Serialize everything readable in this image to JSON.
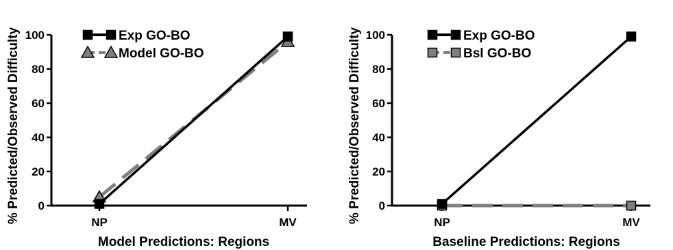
{
  "chart_data": [
    {
      "type": "line",
      "categories": [
        "NP",
        "MV"
      ],
      "xlabel": "Model Predictions: Regions",
      "ylabel": "% Predicted/Observed Difficulty",
      "ylim": [
        0,
        100
      ],
      "yticks": [
        0,
        20,
        40,
        60,
        80,
        100
      ],
      "grid": false,
      "legend_position": "top-left",
      "series": [
        {
          "name": "Exp GO-BO",
          "values": [
            1,
            99
          ],
          "color": "#000000",
          "marker": "square",
          "line": "solid"
        },
        {
          "name": "Model GO-BO",
          "values": [
            5,
            96
          ],
          "color": "#7f7f7f",
          "marker": "triangle",
          "line": "dashed"
        }
      ]
    },
    {
      "type": "line",
      "categories": [
        "NP",
        "MV"
      ],
      "xlabel": "Baseline Predictions: Regions",
      "ylabel": "% Predicted/Observed Difficulty",
      "ylim": [
        0,
        100
      ],
      "yticks": [
        0,
        20,
        40,
        60,
        80,
        100
      ],
      "grid": false,
      "legend_position": "top-left",
      "series": [
        {
          "name": "Exp GO-BO",
          "values": [
            1,
            99
          ],
          "color": "#000000",
          "marker": "square",
          "line": "solid"
        },
        {
          "name": "Bsl GO-BO",
          "values": [
            0,
            0
          ],
          "color": "#7f7f7f",
          "marker": "square",
          "line": "dashed"
        }
      ]
    }
  ]
}
